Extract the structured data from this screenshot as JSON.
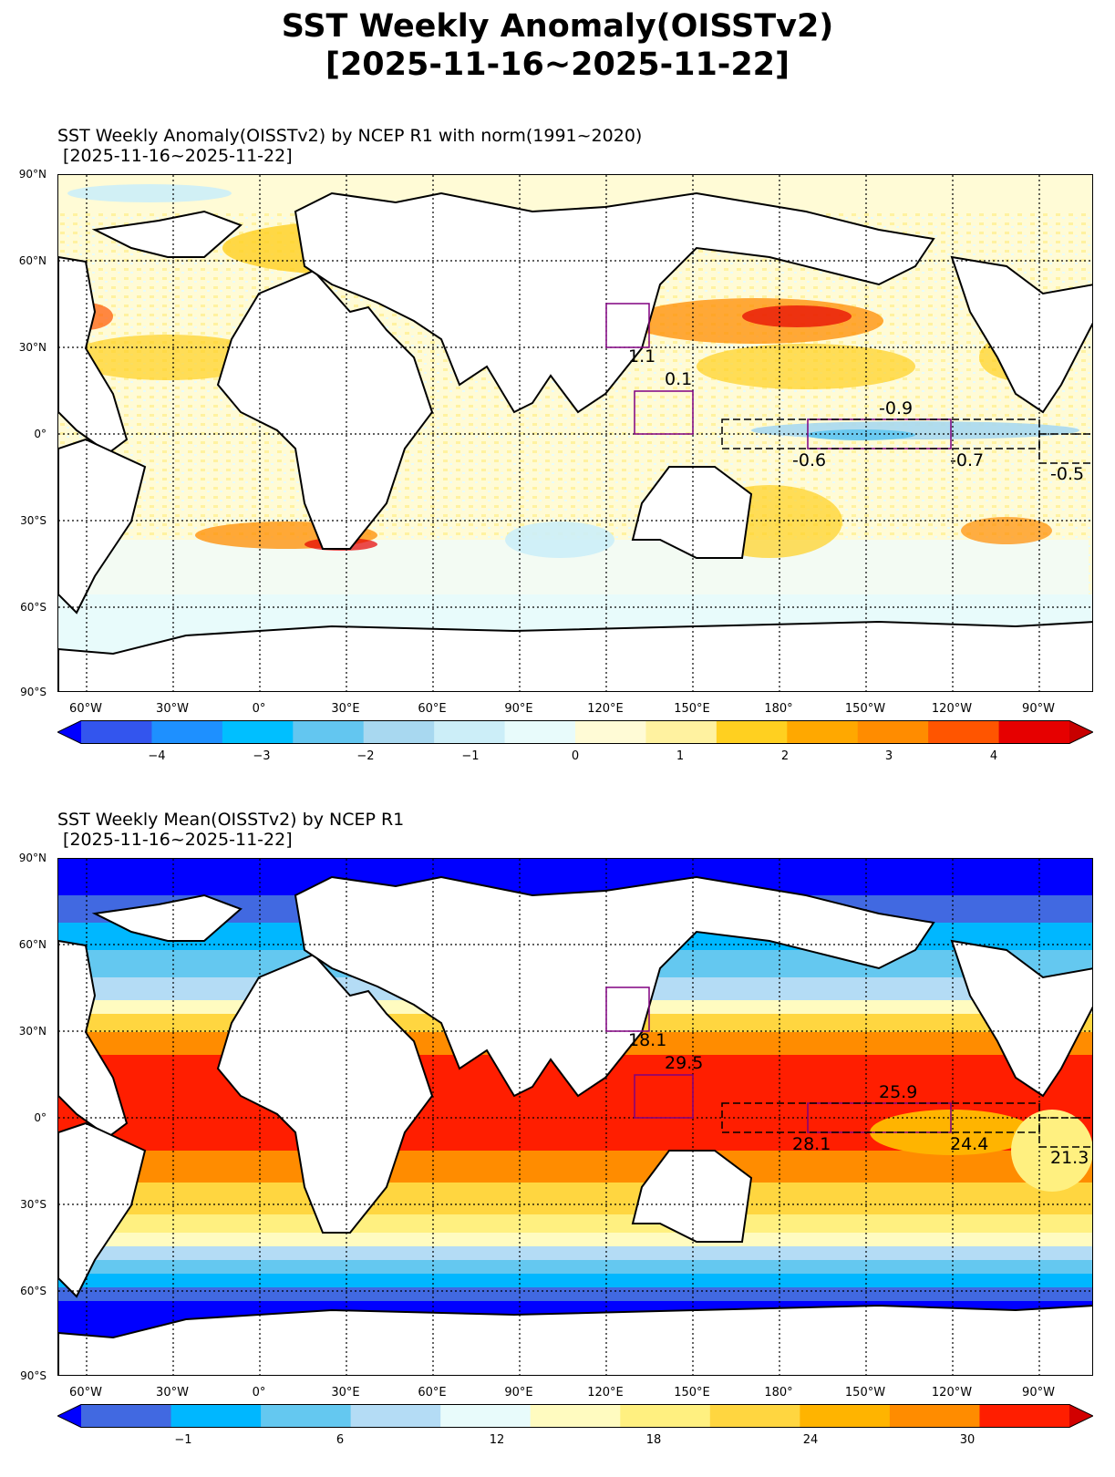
{
  "main_title": {
    "line1": "SST Weekly Anomaly(OISSTv2)",
    "line2": "[2025-11-16~2025-11-22]"
  },
  "panels": [
    {
      "id": "anomaly",
      "title_line1": "SST Weekly Anomaly(OISSTv2) by NCEP R1 with norm(1991~2020)",
      "title_line2": " [2025-11-16~2025-11-22]",
      "box_values": [
        "1.1",
        "0.1",
        "-0.9",
        "-0.6",
        "-0.7",
        "-0.5"
      ],
      "colorbar_ticks": [
        "−4",
        "−3",
        "−2",
        "−1",
        "0",
        "1",
        "2",
        "3",
        "4"
      ],
      "colorbar_colors": [
        "#0000ff",
        "#3355ee",
        "#1e90ff",
        "#00bfff",
        "#63c6f0",
        "#a8d8f0",
        "#cceef8",
        "#e8fbfb",
        "#fffbd6",
        "#fff2a0",
        "#ffd020",
        "#ffa800",
        "#ff8c00",
        "#ff5500",
        "#e60000",
        "#c80000"
      ]
    },
    {
      "id": "mean",
      "title_line1": "SST Weekly Mean(OISSTv2) by NCEP R1",
      "title_line2": " [2025-11-16~2025-11-22]",
      "box_values": [
        "18.1",
        "29.5",
        "25.9",
        "28.1",
        "24.4",
        "21.3"
      ],
      "colorbar_ticks": [
        "−1",
        "6",
        "12",
        "18",
        "24",
        "30"
      ],
      "colorbar_colors": [
        "#0000ff",
        "#4169e1",
        "#00b7ff",
        "#64c8f0",
        "#b4dcf5",
        "#e8fbfb",
        "#fffbc0",
        "#fff080",
        "#ffd640",
        "#ffb400",
        "#ff8c00",
        "#ff1e00",
        "#d20000"
      ]
    }
  ],
  "latitude_labels": [
    "90°N",
    "60°N",
    "30°N",
    "0°",
    "30°S",
    "60°S",
    "90°S"
  ],
  "longitude_labels": [
    "60°W",
    "30°W",
    "0°",
    "30°E",
    "60°E",
    "90°E",
    "120°E",
    "150°E",
    "180°",
    "150°W",
    "120°W",
    "90°W"
  ],
  "colors": {
    "box_purple": "#800080",
    "land": "#ffffff",
    "coast": "#000000"
  }
}
